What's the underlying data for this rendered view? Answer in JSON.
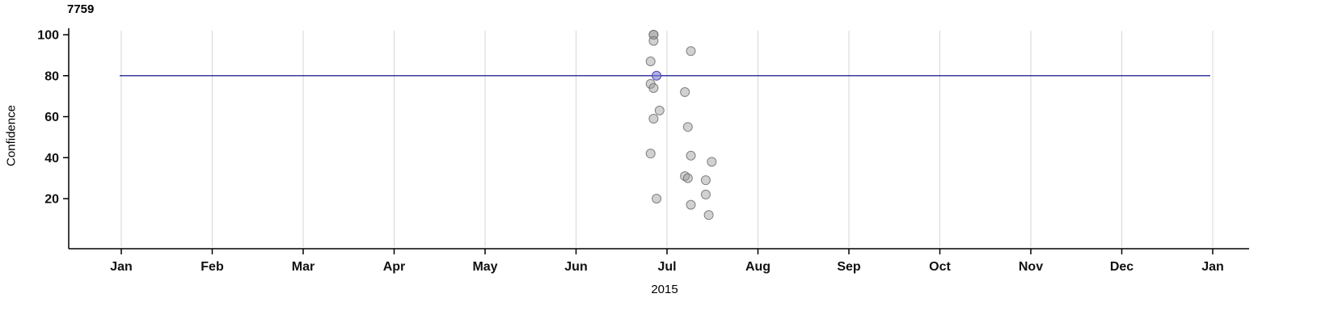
{
  "chart_data": {
    "type": "scatter",
    "title_annotation": "7759",
    "ylabel": "Confidence",
    "xlabel": "2015",
    "y_ticks": [
      20,
      40,
      60,
      80,
      100
    ],
    "ylim": [
      0,
      105
    ],
    "x_tick_labels": [
      "Jan",
      "Feb",
      "Mar",
      "Apr",
      "May",
      "Jun",
      "Jul",
      "Aug",
      "Sep",
      "Oct",
      "Nov",
      "Dec",
      "Jan"
    ],
    "x_range": "Jan 2015 to Jan 2016",
    "grid": "vertical-only",
    "legend": "none",
    "reference_line": {
      "y": 80,
      "color": "#14148c"
    },
    "colors": {
      "grid": "#d6d6d6",
      "axis": "#000000",
      "point_fill": "#999999",
      "point_stroke": "#6e6e6e"
    },
    "points": [
      {
        "date": "2015-06-27",
        "confidence": 100
      },
      {
        "date": "2015-06-27",
        "confidence": 100
      },
      {
        "date": "2015-06-27",
        "confidence": 97
      },
      {
        "date": "2015-06-26",
        "confidence": 87
      },
      {
        "date": "2015-06-26",
        "confidence": 76
      },
      {
        "date": "2015-06-27",
        "confidence": 74
      },
      {
        "date": "2015-06-29",
        "confidence": 63
      },
      {
        "date": "2015-06-27",
        "confidence": 59
      },
      {
        "date": "2015-06-26",
        "confidence": 42
      },
      {
        "date": "2015-06-28",
        "confidence": 20
      },
      {
        "date": "2015-07-09",
        "confidence": 92
      },
      {
        "date": "2015-07-07",
        "confidence": 72
      },
      {
        "date": "2015-07-08",
        "confidence": 55
      },
      {
        "date": "2015-07-09",
        "confidence": 41
      },
      {
        "date": "2015-07-07",
        "confidence": 31
      },
      {
        "date": "2015-07-08",
        "confidence": 30
      },
      {
        "date": "2015-07-09",
        "confidence": 17
      },
      {
        "date": "2015-07-16",
        "confidence": 38
      },
      {
        "date": "2015-07-14",
        "confidence": 29
      },
      {
        "date": "2015-07-14",
        "confidence": 22
      },
      {
        "date": "2015-07-15",
        "confidence": 12
      }
    ],
    "highlight_point": {
      "date": "2015-06-28",
      "confidence": 80,
      "fill": "#7b7bd6",
      "stroke": "#4a4aae"
    }
  }
}
